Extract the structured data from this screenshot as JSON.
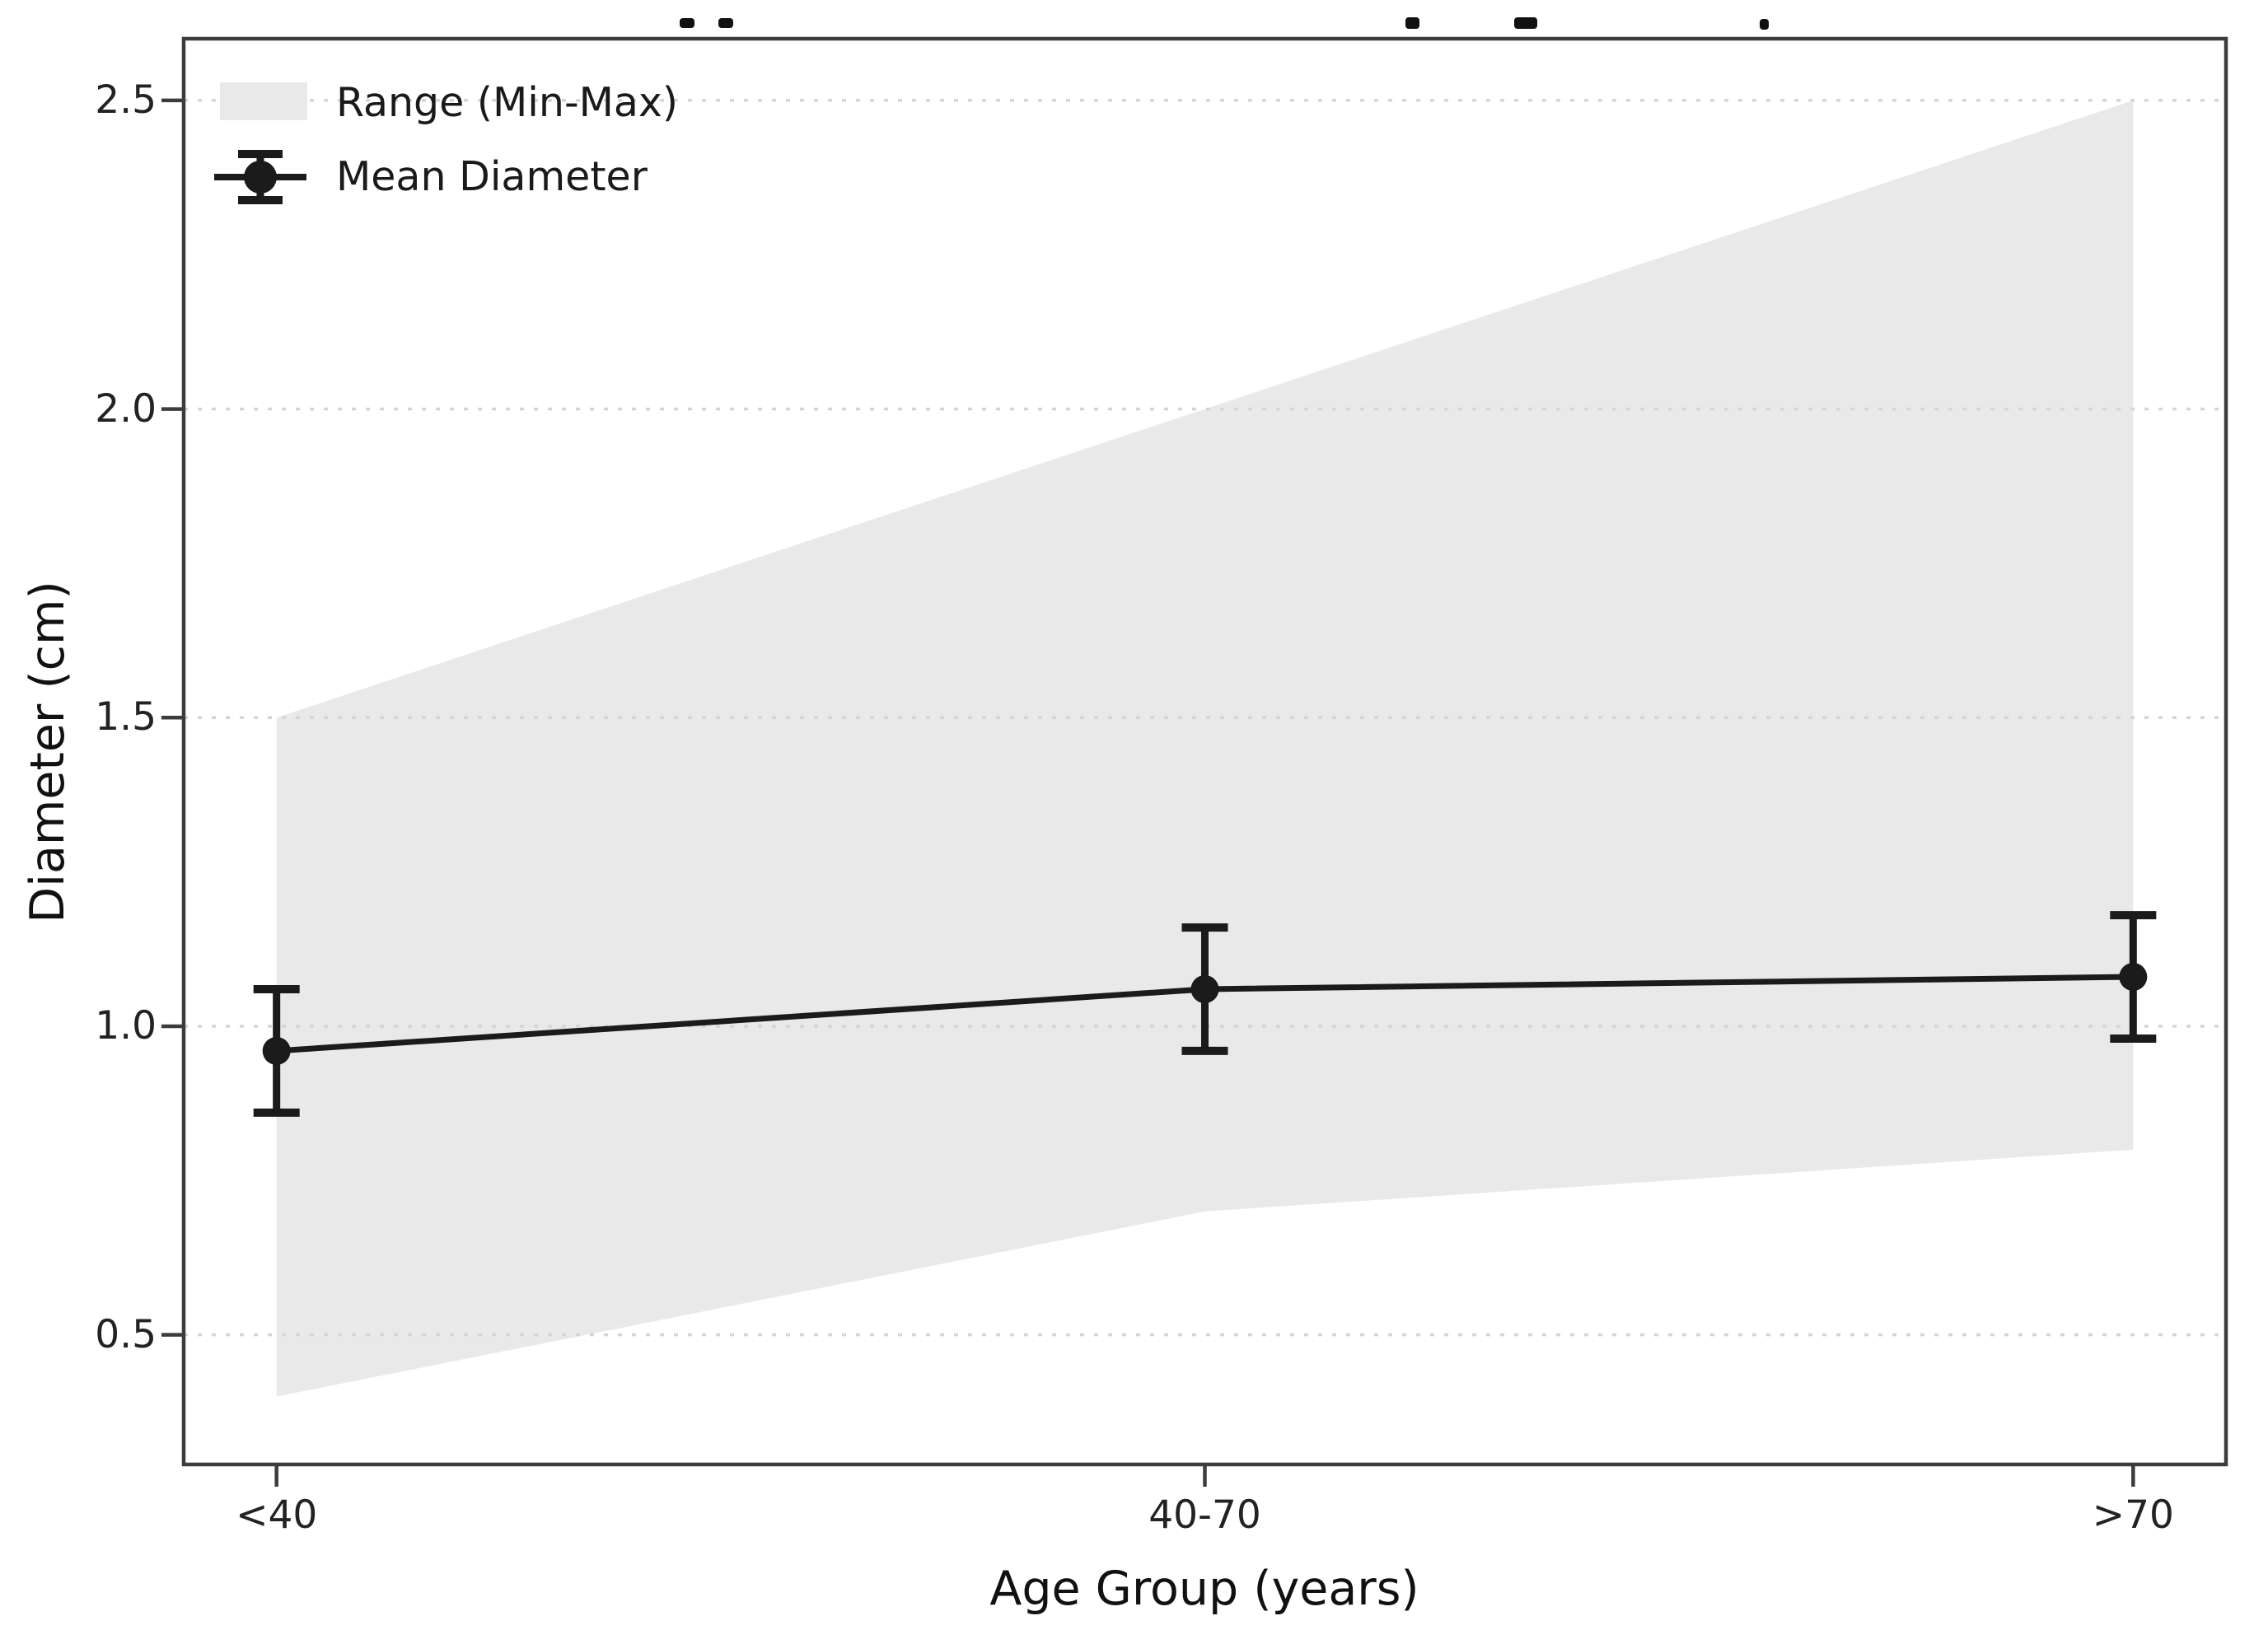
{
  "figure": {
    "note_title_cropped": "",
    "x_axis_label": "Age Group (years)",
    "y_axis_label": "Diameter (cm)"
  },
  "legend": {
    "items": [
      {
        "label": "Range (Min-Max)",
        "symbol": "band-swatch"
      },
      {
        "label": "Mean Diameter",
        "symbol": "errorbar-marker"
      }
    ]
  },
  "chart_data": {
    "type": "line",
    "categories": [
      "<40",
      "40-70",
      ">70"
    ],
    "x": [
      0,
      1,
      2
    ],
    "xlim": [
      -0.1,
      2.1
    ],
    "ylim": [
      0.29,
      2.6
    ],
    "yticks": [
      0.5,
      1.0,
      1.5,
      2.0,
      2.5
    ],
    "series": [
      {
        "name": "Mean Diameter",
        "values": [
          0.96,
          1.06,
          1.08
        ],
        "error": [
          0.1,
          0.1,
          0.1
        ]
      },
      {
        "name": "Range Min",
        "values": [
          0.4,
          0.7,
          0.8
        ]
      },
      {
        "name": "Range Max",
        "values": [
          1.5,
          2.0,
          2.5
        ]
      }
    ],
    "title": "",
    "xlabel": "Age Group (years)",
    "ylabel": "Diameter (cm)",
    "grid": "horizontal-dotted",
    "legend_position": "upper-left",
    "colors": {
      "band": "#e9e9e9",
      "line": "#1b1b1b",
      "grid": "#d5d5d5",
      "spine": "#3c3c3c",
      "text": "#1a1a1a"
    }
  }
}
